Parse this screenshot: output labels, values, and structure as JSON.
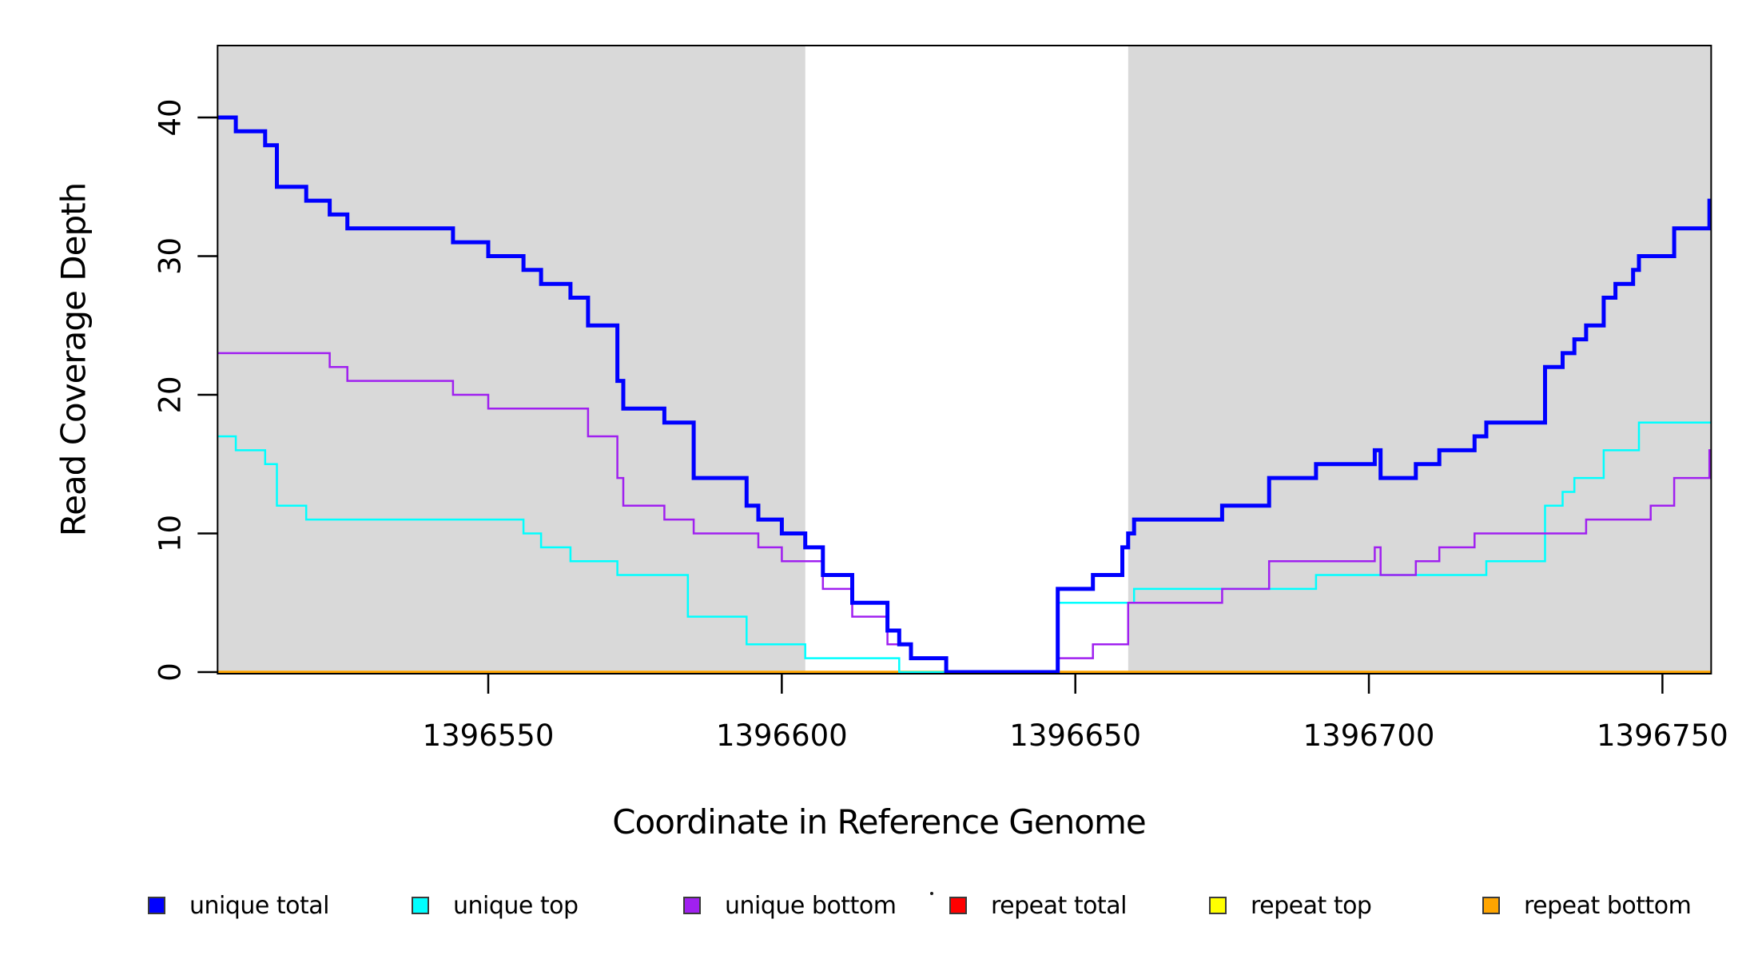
{
  "chart_data": {
    "type": "line",
    "subtype": "step-coverage-plot",
    "title": "",
    "xlabel": "Coordinate in Reference Genome",
    "ylabel": "Read Coverage Depth",
    "xlim": [
      1396503.9,
      1396758.3
    ],
    "ylim": [
      0,
      45.3
    ],
    "grid": "off",
    "panel_background": "#ffffff",
    "border_color": "#000000",
    "shaded_regions": [
      {
        "from": 1396503.9,
        "to": 1396604,
        "color": "#D9D9D9"
      },
      {
        "from": 1396659,
        "to": 1396758.3,
        "color": "#D9D9D9"
      }
    ],
    "x_ticks": {
      "values": [
        1396550,
        1396600,
        1396650,
        1396700,
        1396750
      ],
      "labels": [
        "1396550",
        "1396600",
        "1396650",
        "1396700",
        "1396750"
      ]
    },
    "y_ticks": {
      "values": [
        0,
        10,
        20,
        30,
        40
      ],
      "labels": [
        "0",
        "10",
        "20",
        "30",
        "40"
      ]
    },
    "series": [
      {
        "name": "repeat total",
        "color": "#FF0000",
        "line_width": 2.5,
        "steps": [
          [
            1396504,
            0
          ],
          [
            1396758.3,
            0
          ]
        ]
      },
      {
        "name": "repeat top",
        "color": "#FFFF00",
        "line_width": 2.5,
        "steps": [
          [
            1396504,
            0
          ],
          [
            1396758.3,
            0
          ]
        ]
      },
      {
        "name": "repeat bottom",
        "color": "#FFA500",
        "line_width": 3.5,
        "steps": [
          [
            1396504,
            0
          ],
          [
            1396758.3,
            0
          ]
        ]
      },
      {
        "name": "unique top",
        "color": "#00FFFF",
        "line_width": 2.5,
        "steps": [
          [
            1396504,
            17
          ],
          [
            1396507,
            16
          ],
          [
            1396512,
            15
          ],
          [
            1396514,
            12
          ],
          [
            1396519,
            11
          ],
          [
            1396556,
            10
          ],
          [
            1396559,
            9
          ],
          [
            1396564,
            8
          ],
          [
            1396572,
            7
          ],
          [
            1396584,
            4
          ],
          [
            1396594,
            2
          ],
          [
            1396604,
            1
          ],
          [
            1396620,
            0
          ],
          [
            1396647,
            5
          ],
          [
            1396660,
            6
          ],
          [
            1396691,
            7
          ],
          [
            1396720,
            8
          ],
          [
            1396730,
            12
          ],
          [
            1396733,
            13
          ],
          [
            1396735,
            14
          ],
          [
            1396740,
            16
          ],
          [
            1396746,
            18
          ],
          [
            1396758.3,
            18
          ]
        ]
      },
      {
        "name": "unique bottom",
        "color": "#A020F0",
        "line_width": 2.5,
        "steps": [
          [
            1396504,
            23
          ],
          [
            1396523,
            22
          ],
          [
            1396526,
            21
          ],
          [
            1396544,
            20
          ],
          [
            1396550,
            19
          ],
          [
            1396567,
            17
          ],
          [
            1396572,
            14
          ],
          [
            1396573,
            12
          ],
          [
            1396580,
            11
          ],
          [
            1396585,
            10
          ],
          [
            1396596,
            9
          ],
          [
            1396600,
            8
          ],
          [
            1396607,
            6
          ],
          [
            1396612,
            4
          ],
          [
            1396618,
            2
          ],
          [
            1396622,
            1
          ],
          [
            1396628,
            0
          ],
          [
            1396647,
            1
          ],
          [
            1396653,
            2
          ],
          [
            1396659,
            5
          ],
          [
            1396675,
            6
          ],
          [
            1396683,
            8
          ],
          [
            1396701,
            9
          ],
          [
            1396702,
            7
          ],
          [
            1396708,
            8
          ],
          [
            1396712,
            9
          ],
          [
            1396718,
            10
          ],
          [
            1396737,
            11
          ],
          [
            1396748,
            12
          ],
          [
            1396752,
            14
          ],
          [
            1396758,
            16
          ],
          [
            1396758.3,
            16
          ]
        ]
      },
      {
        "name": "unique total",
        "color": "#0000FF",
        "line_width": 5,
        "steps": [
          [
            1396504,
            40
          ],
          [
            1396507,
            39
          ],
          [
            1396512,
            38
          ],
          [
            1396514,
            35
          ],
          [
            1396519,
            34
          ],
          [
            1396523,
            33
          ],
          [
            1396526,
            32
          ],
          [
            1396544,
            31
          ],
          [
            1396550,
            30
          ],
          [
            1396556,
            29
          ],
          [
            1396559,
            28
          ],
          [
            1396564,
            27
          ],
          [
            1396567,
            25
          ],
          [
            1396572,
            21
          ],
          [
            1396573,
            19
          ],
          [
            1396580,
            18
          ],
          [
            1396585,
            14
          ],
          [
            1396594,
            12
          ],
          [
            1396596,
            11
          ],
          [
            1396600,
            10
          ],
          [
            1396604,
            9
          ],
          [
            1396607,
            7
          ],
          [
            1396612,
            5
          ],
          [
            1396618,
            3
          ],
          [
            1396620,
            2
          ],
          [
            1396622,
            1
          ],
          [
            1396628,
            0
          ],
          [
            1396647,
            6
          ],
          [
            1396653,
            7
          ],
          [
            1396658,
            9
          ],
          [
            1396659,
            10
          ],
          [
            1396660,
            11
          ],
          [
            1396675,
            12
          ],
          [
            1396683,
            14
          ],
          [
            1396691,
            15
          ],
          [
            1396701,
            16
          ],
          [
            1396702,
            14
          ],
          [
            1396708,
            15
          ],
          [
            1396712,
            16
          ],
          [
            1396718,
            17
          ],
          [
            1396720,
            18
          ],
          [
            1396730,
            22
          ],
          [
            1396733,
            23
          ],
          [
            1396735,
            24
          ],
          [
            1396737,
            25
          ],
          [
            1396740,
            27
          ],
          [
            1396742,
            28
          ],
          [
            1396745,
            29
          ],
          [
            1396746,
            30
          ],
          [
            1396752,
            32
          ],
          [
            1396758,
            34
          ],
          [
            1396758.3,
            34
          ]
        ]
      }
    ],
    "legend": {
      "position": "bottom",
      "items": [
        {
          "label": "unique total",
          "color": "#0000FF"
        },
        {
          "label": "unique top",
          "color": "#00FFFF"
        },
        {
          "label": "unique bottom",
          "color": "#A020F0"
        },
        {
          "label": "repeat total",
          "color": "#FF0000"
        },
        {
          "label": "repeat top",
          "color": "#FFFF00"
        },
        {
          "label": "repeat bottom",
          "color": "#FFA500"
        }
      ]
    }
  }
}
